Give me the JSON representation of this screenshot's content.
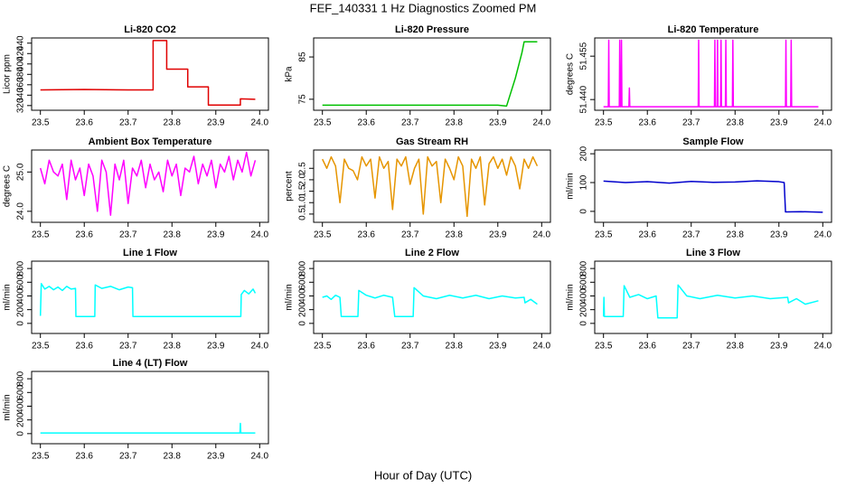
{
  "title": "FEF_140331  1 Hz Diagnostics Zoomed PM",
  "xlabel": "Hour of Day (UTC)",
  "chart_data": [
    {
      "type": "line",
      "title": "Li-820 CO2",
      "ylabel": "Licor ppm",
      "color": "#e00000",
      "xlim": [
        23.48,
        24.02
      ],
      "xticks": [
        23.5,
        23.6,
        23.7,
        23.8,
        23.9,
        {
          "value": 24,
          "label": "24.0"
        }
      ],
      "ylim": [
        311,
        450
      ],
      "yticks": [
        320,
        340,
        360,
        380,
        400,
        420,
        440
      ],
      "x": [
        23.5,
        23.6,
        23.7,
        23.757,
        23.757,
        23.788,
        23.788,
        23.836,
        23.836,
        23.883,
        23.883,
        23.956,
        23.956,
        23.99
      ],
      "values": [
        350,
        351,
        350,
        350,
        445,
        445,
        390,
        390,
        356,
        356,
        321,
        321,
        333,
        332
      ]
    },
    {
      "type": "line",
      "title": "Li-820 Pressure",
      "ylabel": "kPa",
      "color": "#00c000",
      "xlim": [
        23.48,
        24.02
      ],
      "xticks": [
        23.5,
        23.6,
        23.7,
        23.8,
        23.9,
        {
          "value": 24,
          "label": "24.0"
        }
      ],
      "ylim": [
        72.4,
        89.5
      ],
      "yticks": [
        75,
        85
      ],
      "x": [
        23.5,
        23.6,
        23.7,
        23.8,
        23.9,
        23.92,
        23.94,
        23.955,
        23.96,
        23.99
      ],
      "values": [
        73.6,
        73.6,
        73.6,
        73.6,
        73.6,
        73.4,
        80,
        86,
        88.6,
        88.6
      ]
    },
    {
      "type": "line",
      "title": "Li-820 Temperature",
      "ylabel": "degrees C",
      "color": "#ff00ff",
      "xlim": [
        23.48,
        24.02
      ],
      "xticks": [
        23.5,
        23.6,
        23.7,
        23.8,
        23.9,
        {
          "value": 24,
          "label": "24.0"
        }
      ],
      "ylim": [
        51.4363,
        51.4613
      ],
      "yticks": [
        {
          "value": 51.44,
          "label": "51.440"
        },
        51.455
      ],
      "x": [
        23.5,
        23.511,
        23.512,
        23.513,
        23.536,
        23.537,
        23.538,
        23.54,
        23.541,
        23.542,
        23.558,
        23.559,
        23.56,
        23.716,
        23.717,
        23.718,
        23.753,
        23.754,
        23.755,
        23.759,
        23.76,
        23.761,
        23.767,
        23.768,
        23.769,
        23.778,
        23.779,
        23.78,
        23.794,
        23.795,
        23.796,
        23.915,
        23.916,
        23.917,
        23.927,
        23.928,
        23.929,
        23.99
      ],
      "values": [
        51.4375,
        51.4375,
        51.4605,
        51.4375,
        51.4375,
        51.4605,
        51.4375,
        51.4375,
        51.4605,
        51.4375,
        51.4375,
        51.444,
        51.4375,
        51.4375,
        51.4605,
        51.4375,
        51.4375,
        51.4605,
        51.4375,
        51.4375,
        51.4605,
        51.4375,
        51.4375,
        51.4605,
        51.4375,
        51.4375,
        51.4605,
        51.4375,
        51.4375,
        51.4605,
        51.4375,
        51.4375,
        51.4605,
        51.4375,
        51.4375,
        51.4605,
        51.4375,
        51.4375
      ]
    },
    {
      "type": "line",
      "title": "Ambient Box Temperature",
      "ylabel": "degrees C",
      "color": "#ff00ff",
      "xlim": [
        23.48,
        24.02
      ],
      "xticks": [
        23.5,
        23.6,
        23.7,
        23.8,
        23.9,
        {
          "value": 24,
          "label": "24.0"
        }
      ],
      "ylim": [
        23.72,
        25.56
      ],
      "yticks": [
        {
          "value": 24,
          "label": "24.0"
        },
        {
          "value": 25,
          "label": "25.0"
        }
      ],
      "x": [
        23.5,
        23.51,
        23.52,
        23.53,
        23.54,
        23.55,
        23.56,
        23.57,
        23.58,
        23.59,
        23.6,
        23.61,
        23.62,
        23.63,
        23.64,
        23.65,
        23.66,
        23.67,
        23.68,
        23.69,
        23.7,
        23.71,
        23.72,
        23.73,
        23.74,
        23.75,
        23.76,
        23.77,
        23.78,
        23.79,
        23.8,
        23.81,
        23.82,
        23.83,
        23.84,
        23.85,
        23.86,
        23.87,
        23.88,
        23.89,
        23.9,
        23.91,
        23.92,
        23.93,
        23.94,
        23.95,
        23.96,
        23.97,
        23.98,
        23.99
      ],
      "values": [
        25.1,
        24.7,
        25.3,
        25.0,
        24.9,
        25.2,
        24.3,
        25.3,
        24.8,
        25.1,
        24.4,
        25.2,
        24.9,
        24.0,
        25.3,
        25.0,
        23.9,
        25.2,
        24.8,
        25.3,
        24.2,
        25.1,
        24.9,
        25.3,
        24.6,
        25.2,
        24.8,
        25.0,
        24.5,
        25.3,
        24.9,
        25.2,
        24.4,
        25.1,
        25.0,
        25.4,
        24.7,
        25.2,
        24.9,
        25.3,
        24.6,
        25.2,
        25.0,
        25.4,
        24.8,
        25.3,
        25.0,
        25.5,
        24.9,
        25.3
      ]
    },
    {
      "type": "line",
      "title": "Gas Stream RH",
      "ylabel": "percent",
      "color": "#e69500",
      "xlim": [
        23.48,
        24.02
      ],
      "xticks": [
        23.5,
        23.6,
        23.7,
        23.8,
        23.9,
        {
          "value": 24,
          "label": "24.0"
        }
      ],
      "ylim": [
        0.14,
        3.3
      ],
      "yticks": [
        0.5,
        {
          "value": 1,
          "label": "1.0"
        },
        1.5,
        {
          "value": 2,
          "label": "2.0"
        },
        2.5
      ],
      "x": [
        23.5,
        23.51,
        23.52,
        23.53,
        23.54,
        23.55,
        23.56,
        23.57,
        23.58,
        23.59,
        23.6,
        23.61,
        23.62,
        23.63,
        23.64,
        23.65,
        23.66,
        23.67,
        23.68,
        23.69,
        23.7,
        23.71,
        23.72,
        23.73,
        23.74,
        23.75,
        23.76,
        23.77,
        23.78,
        23.79,
        23.8,
        23.81,
        23.82,
        23.83,
        23.84,
        23.85,
        23.86,
        23.87,
        23.88,
        23.89,
        23.9,
        23.91,
        23.92,
        23.93,
        23.94,
        23.95,
        23.96,
        23.97,
        23.98,
        23.99
      ],
      "values": [
        2.9,
        2.5,
        3.0,
        2.6,
        1.0,
        2.9,
        2.5,
        2.4,
        2.0,
        3.0,
        2.6,
        2.9,
        1.2,
        3.0,
        2.5,
        2.8,
        0.7,
        2.9,
        2.6,
        3.0,
        1.8,
        2.5,
        2.9,
        0.5,
        3.0,
        2.6,
        2.8,
        1.0,
        2.9,
        2.5,
        2.0,
        3.0,
        2.6,
        0.4,
        2.9,
        2.5,
        3.0,
        0.9,
        2.7,
        3.0,
        2.5,
        2.9,
        2.2,
        3.0,
        2.6,
        1.6,
        2.9,
        2.5,
        3.0,
        2.6
      ]
    },
    {
      "type": "line",
      "title": "Sample Flow",
      "ylabel": "ml/min",
      "color": "#0000cc",
      "xlim": [
        23.48,
        24.02
      ],
      "xticks": [
        23.5,
        23.6,
        23.7,
        23.8,
        23.9,
        {
          "value": 24,
          "label": "24.0"
        }
      ],
      "ylim": [
        -38,
        213
      ],
      "yticks": [
        0,
        100,
        200
      ],
      "x": [
        23.5,
        23.55,
        23.6,
        23.65,
        23.7,
        23.75,
        23.8,
        23.85,
        23.9,
        23.912,
        23.915,
        23.95,
        24.0
      ],
      "values": [
        105,
        100,
        103,
        98,
        104,
        101,
        102,
        106,
        103,
        100,
        -2,
        -1,
        -3
      ]
    },
    {
      "type": "line",
      "title": "Line 1 Flow",
      "ylabel": "ml/min",
      "color": "#00ffff",
      "xlim": [
        23.48,
        24.02
      ],
      "xticks": [
        23.5,
        23.6,
        23.7,
        23.8,
        23.9,
        {
          "value": 24,
          "label": "24.0"
        }
      ],
      "ylim": [
        -147,
        907
      ],
      "yticks": [
        0,
        200,
        400,
        600,
        800
      ],
      "x": [
        23.5,
        23.502,
        23.51,
        23.52,
        23.53,
        23.54,
        23.55,
        23.56,
        23.57,
        23.58,
        23.581,
        23.624,
        23.625,
        23.64,
        23.66,
        23.68,
        23.7,
        23.71,
        23.711,
        23.957,
        23.958,
        23.965,
        23.975,
        23.985,
        23.99
      ],
      "values": [
        110,
        580,
        500,
        540,
        490,
        530,
        480,
        540,
        500,
        510,
        100,
        100,
        560,
        510,
        540,
        490,
        530,
        520,
        100,
        100,
        420,
        480,
        430,
        500,
        440
      ]
    },
    {
      "type": "line",
      "title": "Line 2 Flow",
      "ylabel": "ml/min",
      "color": "#00ffff",
      "xlim": [
        23.48,
        24.02
      ],
      "xticks": [
        23.5,
        23.6,
        23.7,
        23.8,
        23.9,
        {
          "value": 24,
          "label": "24.0"
        }
      ],
      "ylim": [
        -147,
        907
      ],
      "yticks": [
        0,
        200,
        400,
        600,
        800
      ],
      "x": [
        23.5,
        23.51,
        23.52,
        23.53,
        23.54,
        23.543,
        23.581,
        23.583,
        23.6,
        23.62,
        23.64,
        23.66,
        23.665,
        23.707,
        23.709,
        23.73,
        23.76,
        23.79,
        23.82,
        23.85,
        23.88,
        23.91,
        23.94,
        23.96,
        23.962,
        23.975,
        23.99
      ],
      "values": [
        380,
        400,
        350,
        410,
        380,
        100,
        100,
        480,
        410,
        370,
        410,
        380,
        100,
        100,
        520,
        400,
        360,
        410,
        370,
        410,
        360,
        400,
        370,
        380,
        300,
        350,
        280
      ]
    },
    {
      "type": "line",
      "title": "Line 3 Flow",
      "ylabel": "ml/min",
      "color": "#00ffff",
      "xlim": [
        23.48,
        24.02
      ],
      "xticks": [
        23.5,
        23.6,
        23.7,
        23.8,
        23.9,
        {
          "value": 24,
          "label": "24.0"
        }
      ],
      "ylim": [
        -147,
        907
      ],
      "yticks": [
        0,
        200,
        400,
        600,
        800
      ],
      "x": [
        23.5,
        23.501,
        23.502,
        23.545,
        23.547,
        23.56,
        23.58,
        23.6,
        23.62,
        23.624,
        23.668,
        23.67,
        23.69,
        23.72,
        23.76,
        23.8,
        23.84,
        23.88,
        23.92,
        23.922,
        23.94,
        23.96,
        23.99
      ],
      "values": [
        100,
        380,
        100,
        100,
        550,
        380,
        420,
        360,
        400,
        80,
        80,
        560,
        400,
        360,
        410,
        370,
        400,
        360,
        380,
        300,
        360,
        280,
        330
      ]
    },
    {
      "type": "line",
      "title": "Line 4 (LT) Flow",
      "ylabel": "ml/min",
      "color": "#00ffff",
      "xlim": [
        23.48,
        24.02
      ],
      "xticks": [
        23.5,
        23.6,
        23.7,
        23.8,
        23.9,
        {
          "value": 24,
          "label": "24.0"
        }
      ],
      "ylim": [
        -147,
        907
      ],
      "yticks": [
        0,
        200,
        400,
        600,
        800
      ],
      "x": [
        23.5,
        23.7,
        23.955,
        23.956,
        23.957,
        23.99
      ],
      "values": [
        10,
        10,
        10,
        150,
        10,
        10
      ]
    }
  ]
}
